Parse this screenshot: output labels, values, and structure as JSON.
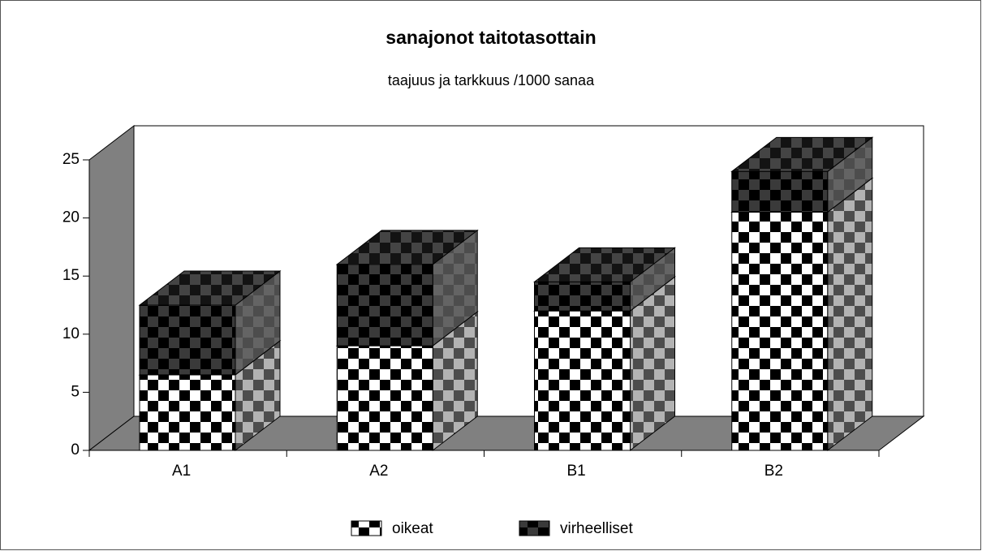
{
  "chart_data": {
    "type": "bar3d-stacked",
    "title": "sanajonot taitotasottain",
    "subtitle": "taajuus ja tarkkuus /1000 sanaa",
    "categories": [
      "A1",
      "A2",
      "B1",
      "B2"
    ],
    "series": [
      {
        "name": "oikeat",
        "color": "#ffffff",
        "values": [
          6.5,
          9,
          12,
          20.5
        ]
      },
      {
        "name": "virheelliset",
        "color": "#000000",
        "values": [
          6,
          7,
          2.5,
          3.5
        ]
      }
    ],
    "ylim": [
      0,
      25
    ],
    "yticks": [
      0,
      5,
      10,
      15,
      20,
      25
    ]
  }
}
